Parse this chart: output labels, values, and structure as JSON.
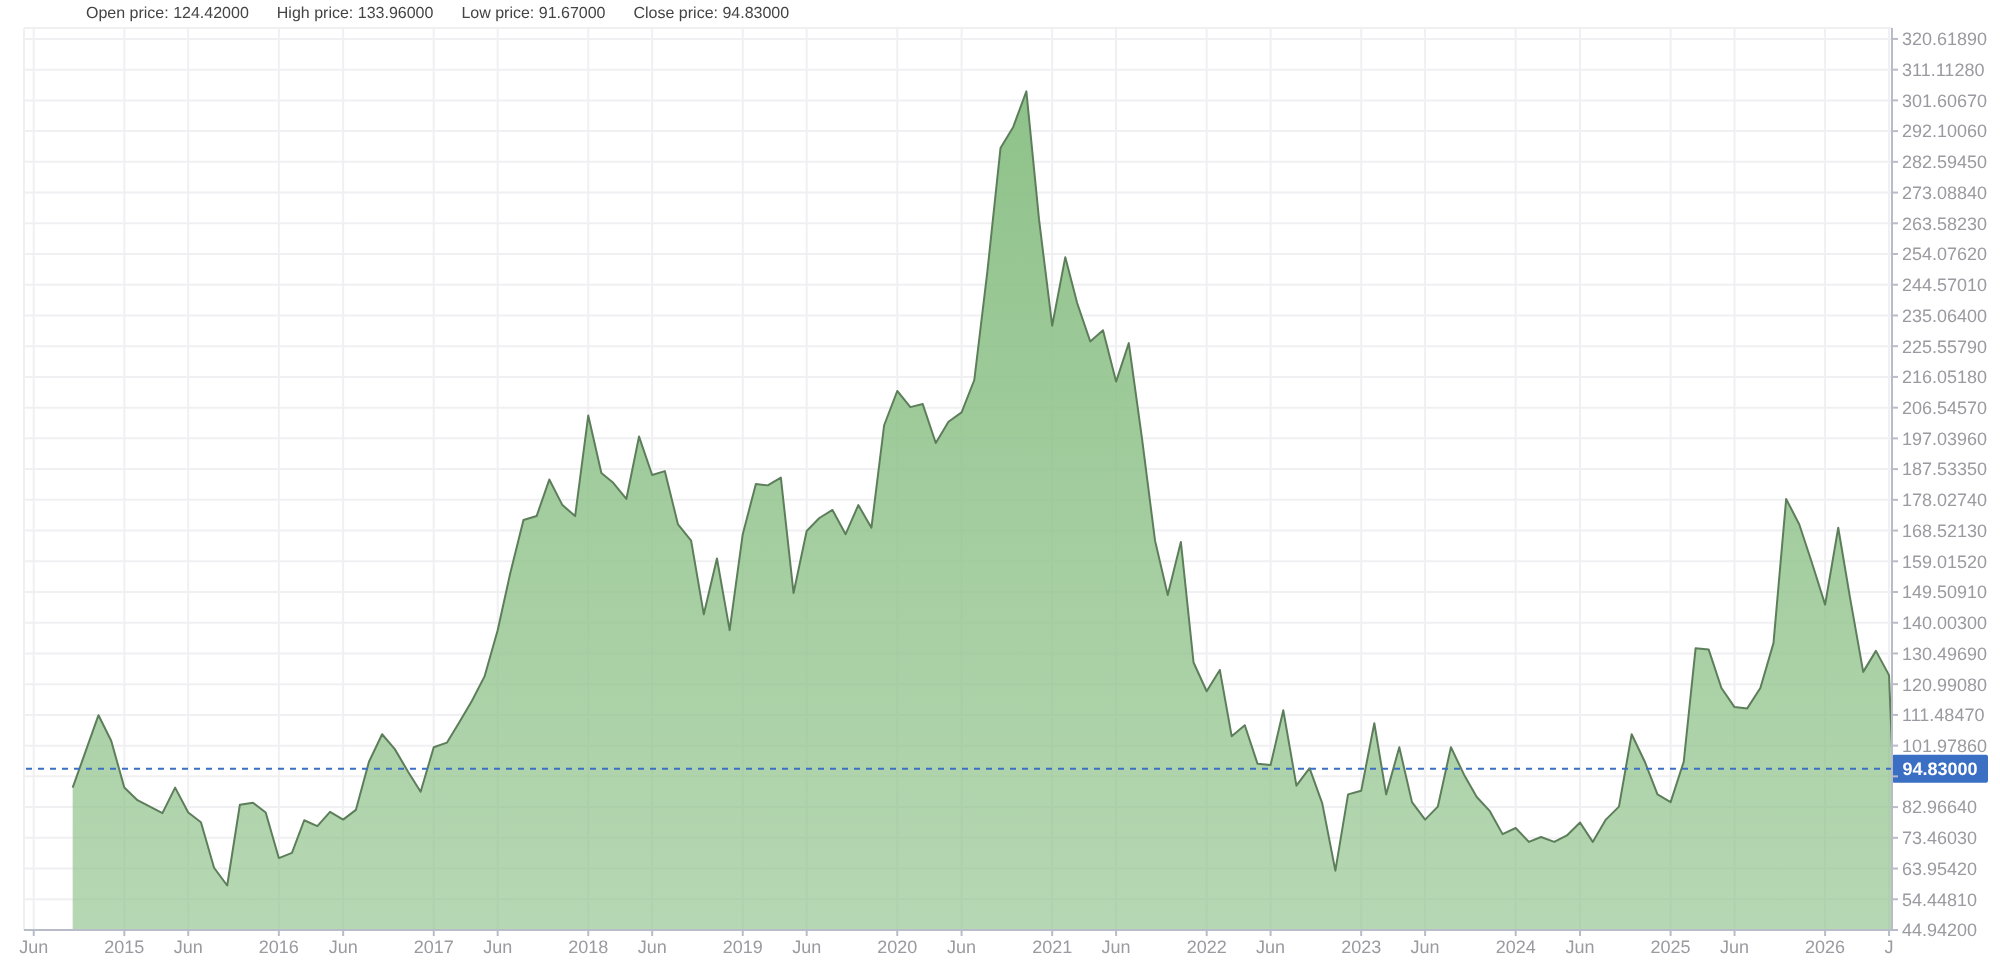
{
  "chart_data": {
    "type": "area",
    "annotations": [
      "Open price: 124.42000",
      "High price: 133.96000",
      "Low price: 91.67000",
      "Close price: 94.83000"
    ],
    "x": [
      "2014-09",
      "2014-11",
      "2014-12",
      "2015-01",
      "2015-02",
      "2015-04",
      "2015-05",
      "2015-06",
      "2015-07",
      "2015-08",
      "2015-09",
      "2015-10",
      "2015-11",
      "2015-12",
      "2016-01",
      "2016-02",
      "2016-03",
      "2016-04",
      "2016-05",
      "2016-06",
      "2016-07",
      "2016-08",
      "2016-09",
      "2016-10",
      "2016-11",
      "2016-12",
      "2017-01",
      "2017-02",
      "2017-03",
      "2017-04",
      "2017-05",
      "2017-06",
      "2017-07",
      "2017-08",
      "2017-09",
      "2017-10",
      "2017-11",
      "2017-12",
      "2018-01",
      "2018-02",
      "2018-03",
      "2018-04",
      "2018-05",
      "2018-06",
      "2018-07",
      "2018-08",
      "2018-09",
      "2018-10",
      "2018-11",
      "2018-12",
      "2019-01",
      "2019-02",
      "2019-03",
      "2019-04",
      "2019-05",
      "2019-06",
      "2019-07",
      "2019-08",
      "2019-09",
      "2019-10",
      "2019-11",
      "2019-12",
      "2020-01",
      "2020-02",
      "2020-03",
      "2020-04",
      "2020-05",
      "2020-06",
      "2020-07",
      "2020-08",
      "2020-09",
      "2020-10",
      "2020-11",
      "2020-12",
      "2021-01",
      "2021-02",
      "2021-03",
      "2021-04",
      "2021-05",
      "2021-06",
      "2021-07",
      "2021-08",
      "2021-09",
      "2021-10",
      "2021-11",
      "2021-12",
      "2022-01",
      "2022-02",
      "2022-03",
      "2022-04",
      "2022-05",
      "2022-06",
      "2022-07",
      "2022-08",
      "2022-09",
      "2022-10",
      "2022-11",
      "2022-12",
      "2023-01",
      "2023-02",
      "2023-03",
      "2023-04",
      "2023-05",
      "2023-06",
      "2023-07",
      "2023-08",
      "2023-09",
      "2023-10",
      "2023-11",
      "2023-12",
      "2024-01",
      "2024-02",
      "2024-03",
      "2024-04",
      "2024-05",
      "2024-06",
      "2024-07",
      "2024-08",
      "2024-09",
      "2024-10",
      "2024-11",
      "2024-12",
      "2025-01",
      "2025-02",
      "2025-03",
      "2025-04",
      "2025-05",
      "2025-06",
      "2025-07",
      "2025-08",
      "2025-09",
      "2025-10",
      "2025-11",
      "2025-12",
      "2026-01",
      "2026-02",
      "2026-03",
      "2026-04",
      "2026-05",
      "2026-06",
      "2026-06-08"
    ],
    "series": [
      {
        "color": "#8fc28a",
        "values": [
          89.0,
          111.4,
          103.5,
          89.0,
          85.1,
          81.1,
          89.0,
          81.3,
          78.3,
          64.2,
          58.7,
          83.7,
          84.3,
          81.3,
          67.2,
          68.8,
          78.9,
          77.1,
          81.5,
          79.1,
          82.1,
          97.0,
          105.5,
          100.9,
          94.0,
          87.7,
          101.5,
          102.9,
          108.9,
          115.8,
          123.4,
          137.7,
          155.5,
          171.8,
          173.0,
          184.3,
          176.4,
          173.0,
          204.1,
          186.3,
          183.3,
          178.3,
          197.6,
          185.7,
          186.9,
          170.4,
          165.4,
          142.6,
          159.9,
          137.7,
          167.4,
          182.9,
          182.5,
          184.9,
          149.2,
          168.4,
          172.4,
          174.9,
          167.4,
          176.4,
          169.4,
          201.1,
          211.7,
          206.7,
          207.7,
          195.6,
          202.2,
          205.1,
          215.1,
          248.8,
          286.9,
          293.4,
          304.4,
          264.7,
          231.9,
          253.1,
          238.9,
          227.0,
          230.5,
          214.6,
          226.5,
          197.2,
          165.4,
          148.6,
          165.0,
          127.7,
          118.8,
          125.4,
          104.9,
          108.3,
          96.4,
          96.0,
          112.9,
          89.6,
          95.0,
          84.1,
          63.3,
          86.9,
          88.0,
          108.9,
          86.9,
          101.5,
          84.5,
          79.1,
          83.1,
          101.5,
          93.0,
          86.1,
          81.7,
          74.6,
          76.5,
          72.2,
          73.7,
          72.2,
          74.2,
          78.2,
          72.2,
          79.1,
          83.1,
          105.5,
          97.0,
          86.9,
          84.5,
          97.0,
          132.1,
          131.7,
          119.8,
          113.9,
          113.5,
          119.8,
          133.7,
          178.3,
          170.4,
          158.5,
          145.6,
          169.4,
          147.6,
          124.8,
          131.3,
          123.8,
          101.0
        ]
      }
    ],
    "xlim": [
      "2014-05-09",
      "2026-06-08"
    ],
    "xticks": [
      {
        "value": "2014-06",
        "label": "Jun"
      },
      "2015",
      {
        "value": "2015-06",
        "label": "Jun"
      },
      "2016",
      {
        "value": "2016-06",
        "label": "Jun"
      },
      "2017",
      {
        "value": "2017-06",
        "label": "Jun"
      },
      "2018",
      {
        "value": "2018-06",
        "label": "Jun"
      },
      "2019",
      {
        "value": "2019-06",
        "label": "Jun"
      },
      "2020",
      {
        "value": "2020-06",
        "label": "Jun"
      },
      "2021",
      {
        "value": "2021-06",
        "label": "Jun"
      },
      "2022",
      {
        "value": "2022-06",
        "label": "Jun"
      },
      "2023",
      {
        "value": "2023-06",
        "label": "Jun"
      },
      "2024",
      {
        "value": "2024-06",
        "label": "Jun"
      },
      "2025",
      {
        "value": "2025-06",
        "label": "Jun"
      },
      "2026",
      {
        "value": "2026-06",
        "label": "J"
      }
    ],
    "ylim": [
      44.942,
      324
    ],
    "yticks": [
      {
        "value": 44.942,
        "label": "44.94200"
      },
      {
        "value": 54.4481,
        "label": "54.44810"
      },
      {
        "value": 63.9542,
        "label": "63.95420"
      },
      {
        "value": 73.4603,
        "label": "73.46030"
      },
      {
        "value": 82.9664,
        "label": "82.96640"
      },
      {
        "value": 92.4725,
        "label": null
      },
      {
        "value": 101.9786,
        "label": "101.97860"
      },
      {
        "value": 111.4847,
        "label": "111.48470"
      },
      {
        "value": 120.9908,
        "label": "120.99080"
      },
      {
        "value": 130.4969,
        "label": "130.49690"
      },
      {
        "value": 140.003,
        "label": "140.00300"
      },
      {
        "value": 149.5091,
        "label": "149.50910"
      },
      {
        "value": 159.0152,
        "label": "159.01520"
      },
      {
        "value": 168.5213,
        "label": "168.52130"
      },
      {
        "value": 178.0274,
        "label": "178.02740"
      },
      {
        "value": 187.5335,
        "label": "187.53350"
      },
      {
        "value": 197.0396,
        "label": "197.03960"
      },
      {
        "value": 206.5457,
        "label": "206.54570"
      },
      {
        "value": 216.0518,
        "label": "216.05180"
      },
      {
        "value": 225.5579,
        "label": "225.55790"
      },
      {
        "value": 235.064,
        "label": "235.06400"
      },
      {
        "value": 244.5701,
        "label": "244.57010"
      },
      {
        "value": 254.0762,
        "label": "254.07620"
      },
      {
        "value": 263.5823,
        "label": "263.58230"
      },
      {
        "value": 273.0884,
        "label": "273.08840"
      },
      {
        "value": 282.5945,
        "label": "282.59450"
      },
      {
        "value": 292.1006,
        "label": "292.10060"
      },
      {
        "value": 301.6067,
        "label": "301.60670"
      },
      {
        "value": 311.1128,
        "label": "311.11280"
      },
      {
        "value": 320.6189,
        "label": "320.61890"
      }
    ],
    "ref_lines": [
      {
        "axis": "y",
        "value": 94.83,
        "label": "94.83000",
        "color": "#3b6fc4"
      }
    ],
    "grid": true
  }
}
